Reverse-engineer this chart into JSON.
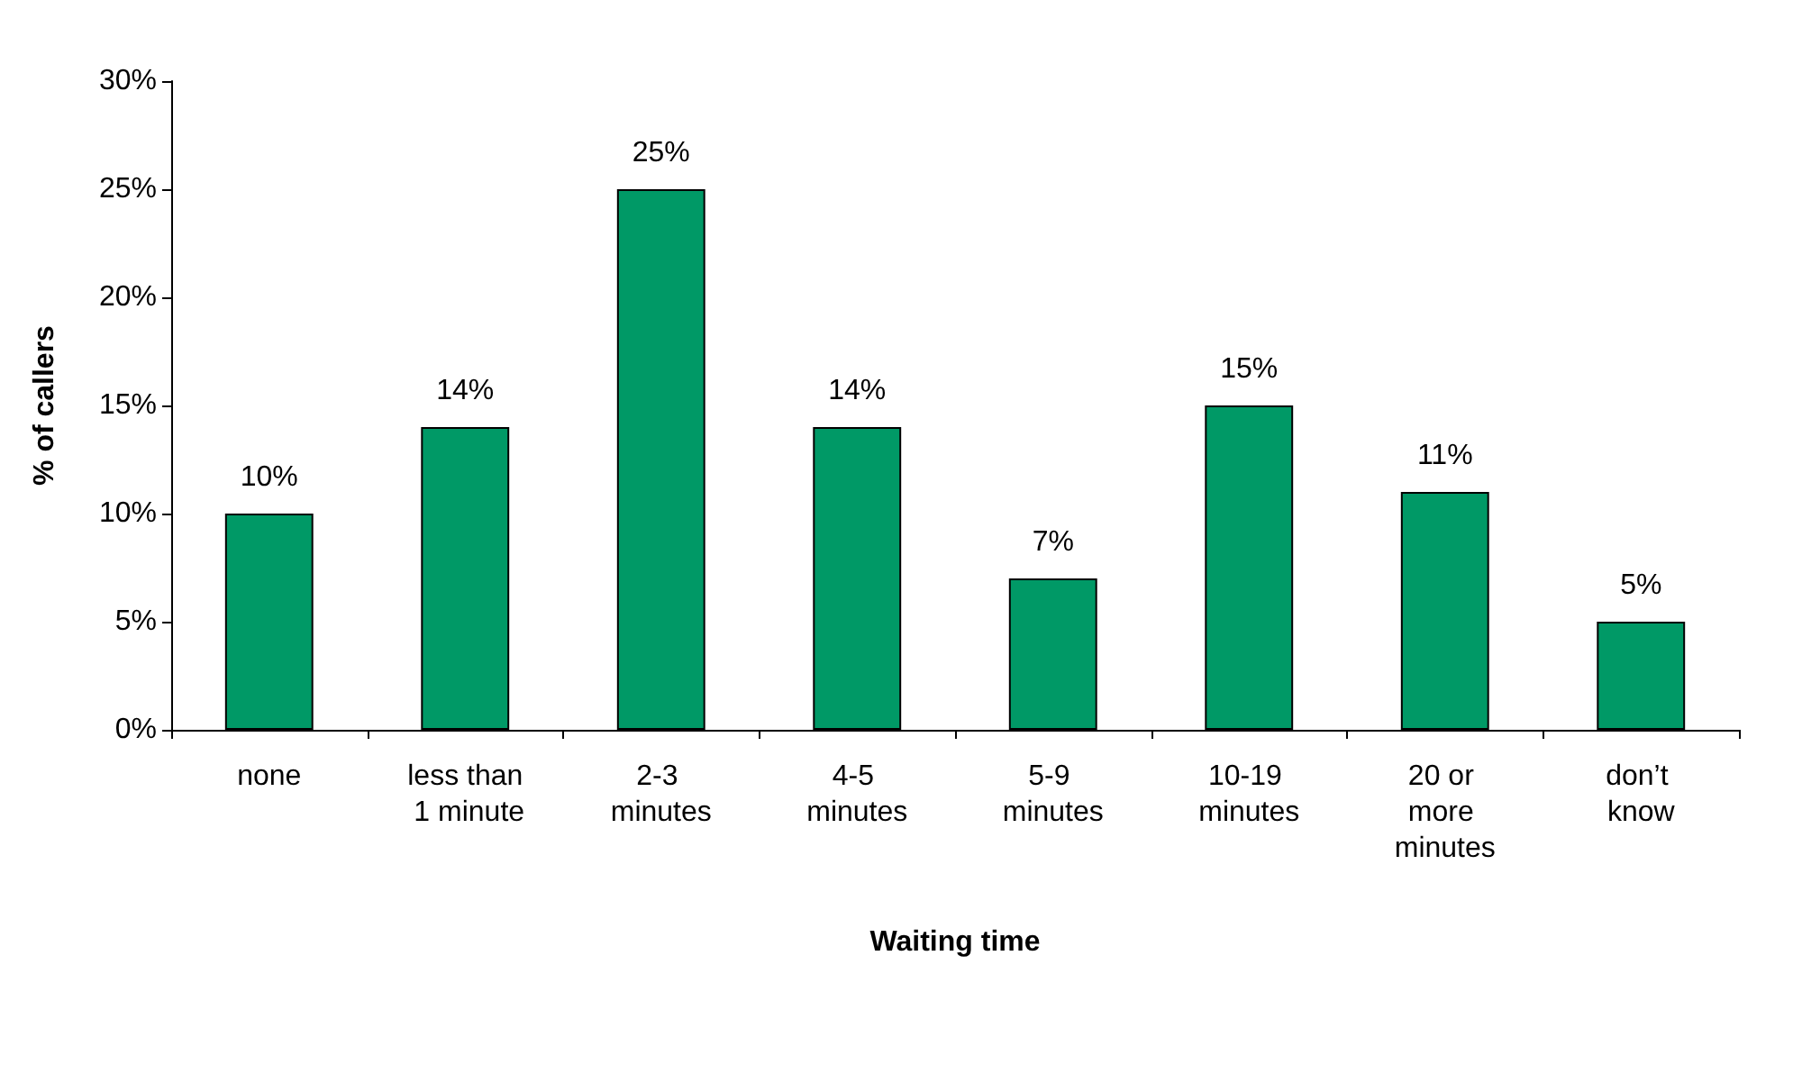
{
  "chart_data": {
    "type": "bar",
    "xlabel": "Waiting time",
    "ylabel": "% of callers",
    "categories": [
      "none",
      "less than 1 minute",
      "2-3 minutes",
      "4-5 minutes",
      "5-9 minutes",
      "10-19 minutes",
      "20 or more minutes",
      "don’t know"
    ],
    "values": [
      10,
      14,
      25,
      14,
      7,
      15,
      11,
      5
    ],
    "value_labels": [
      "10%",
      "14%",
      "25%",
      "14%",
      "7%",
      "15%",
      "11%",
      "5%"
    ],
    "color": "#009966",
    "ylim": [
      0,
      30
    ],
    "yticks": [
      {
        "value": 0,
        "label": "0%"
      },
      {
        "value": 5,
        "label": "5%"
      },
      {
        "value": 10,
        "label": "10%"
      },
      {
        "value": 15,
        "label": "15%"
      },
      {
        "value": 20,
        "label": "20%"
      },
      {
        "value": 25,
        "label": "25%"
      },
      {
        "value": 30,
        "label": "30%"
      }
    ],
    "grid": false
  }
}
